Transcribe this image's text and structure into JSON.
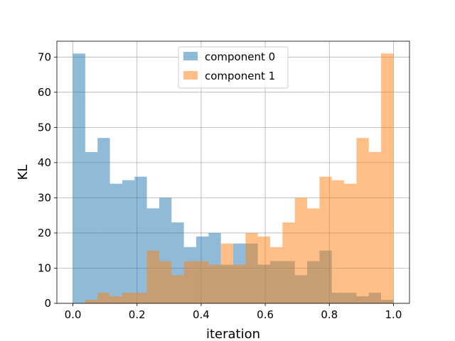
{
  "chart_data": {
    "type": "bar",
    "subtype": "overlapping-histogram",
    "title": "",
    "xlabel": "iteration",
    "ylabel": "KL",
    "xlim": [
      -0.05,
      1.05
    ],
    "ylim": [
      0,
      74.5
    ],
    "xticks": [
      0.0,
      0.2,
      0.4,
      0.6,
      0.8,
      1.0
    ],
    "xtick_labels": [
      "0.0",
      "0.2",
      "0.4",
      "0.6",
      "0.8",
      "1.0"
    ],
    "yticks": [
      0,
      10,
      20,
      30,
      40,
      50,
      60,
      70
    ],
    "ytick_labels": [
      "0",
      "10",
      "20",
      "30",
      "40",
      "50",
      "60",
      "70"
    ],
    "grid": true,
    "legend_position": "upper center",
    "bins": 26,
    "bin_range": [
      0.0,
      1.0
    ],
    "series": [
      {
        "name": "component 0",
        "color": "#1f77b4",
        "alpha": 0.5,
        "values": [
          71,
          43,
          47,
          34,
          35,
          36,
          27,
          30,
          23,
          16,
          19,
          20,
          11,
          17,
          17,
          11,
          12,
          12,
          8,
          12,
          15,
          3,
          3,
          2,
          3,
          1
        ]
      },
      {
        "name": "component 1",
        "color": "#ff7f0e",
        "alpha": 0.5,
        "values": [
          0,
          1,
          3,
          2,
          3,
          3,
          15,
          12,
          8,
          12,
          12,
          11,
          17,
          11,
          20,
          19,
          16,
          23,
          30,
          27,
          36,
          35,
          34,
          47,
          43,
          71
        ]
      }
    ]
  }
}
